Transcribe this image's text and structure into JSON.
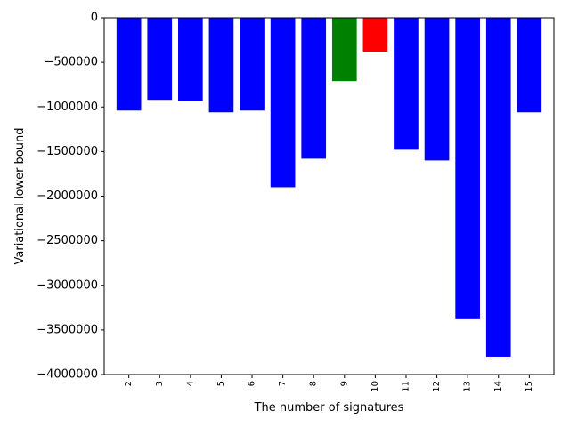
{
  "chart_data": {
    "type": "bar",
    "title": "",
    "xlabel": "The number of signatures",
    "ylabel": "Variational lower bound",
    "categories": [
      "2",
      "3",
      "4",
      "5",
      "6",
      "7",
      "8",
      "9",
      "10",
      "11",
      "12",
      "13",
      "14",
      "15"
    ],
    "values": [
      -1040000,
      -920000,
      -930000,
      -1060000,
      -1040000,
      -1900000,
      -1580000,
      -710000,
      -380000,
      -1480000,
      -1600000,
      -3380000,
      -3800000,
      -1060000
    ],
    "bar_colors": [
      "#0000ff",
      "#0000ff",
      "#0000ff",
      "#0000ff",
      "#0000ff",
      "#0000ff",
      "#0000ff",
      "#008000",
      "#ff0000",
      "#0000ff",
      "#0000ff",
      "#0000ff",
      "#0000ff",
      "#0000ff"
    ],
    "ylim": [
      -4000000,
      0
    ],
    "yticks": [
      0,
      -500000,
      -1000000,
      -1500000,
      -2000000,
      -2500000,
      -3000000,
      -3500000,
      -4000000
    ],
    "ytick_labels": [
      "0",
      "−500000",
      "−1000000",
      "−1500000",
      "−2000000",
      "−2500000",
      "−3000000",
      "−3500000",
      "−4000000"
    ],
    "xtick_rotation": "vertical",
    "grid": false,
    "legend": "none"
  }
}
